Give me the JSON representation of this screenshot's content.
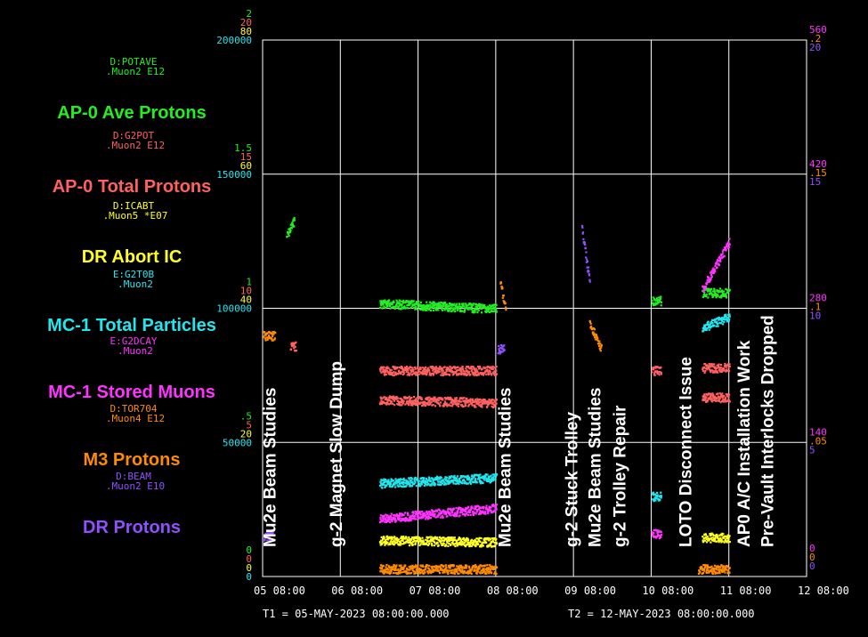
{
  "chart_data": {
    "type": "scatter",
    "grid": true,
    "x": {
      "ticks": [
        "05 08:00",
        "06 08:00",
        "07 08:00",
        "08 08:00",
        "09 08:00",
        "10 08:00",
        "11 08:00",
        "12 08:00"
      ],
      "t1_label": "T1 = 05-MAY-2023 08:00:00.000",
      "t2_label": "T2 = 12-MAY-2023 08:00:00.000",
      "range_days": [
        0,
        7
      ]
    },
    "left_axis_ticks": [
      {
        "color": "#22ee22",
        "values": [
          "2",
          "1.5",
          "1",
          ".5",
          "0"
        ]
      },
      {
        "color": "#ff6060",
        "values": [
          "20",
          "15",
          "10",
          "5",
          "0"
        ]
      },
      {
        "color": "#ffff22",
        "values": [
          "80",
          "60",
          "40",
          "20",
          "0"
        ]
      },
      {
        "color": "#22e6ee",
        "values": [
          "200000",
          "150000",
          "100000",
          "50000",
          "0"
        ]
      }
    ],
    "right_axis_ticks": [
      {
        "color": "#ff33ff",
        "values": [
          "560",
          "420",
          "280",
          "140",
          "0"
        ]
      },
      {
        "color": "#ff8c00",
        "values": [
          ".2",
          ".15",
          ".1",
          ".05",
          "0"
        ]
      },
      {
        "color": "#9050ff",
        "values": [
          "20",
          "15",
          "10",
          "5",
          "0"
        ]
      }
    ],
    "legend": [
      {
        "device": "D:POTAVE",
        "sub": ".Muon2 E12",
        "name": "AP-0 Ave Protons",
        "color": "#22ee22"
      },
      {
        "device": "D:G2POT",
        "sub": ".Muon2 E12",
        "name": "AP-0 Total Protons",
        "color": "#ff6060"
      },
      {
        "device": "D:ICABT",
        "sub": ".Muon5 *E07",
        "name": "DR Abort IC",
        "color": "#ffff22"
      },
      {
        "device": "E:G2T0B",
        "sub": ".Muon2",
        "name": "MC-1 Total Particles",
        "color": "#22e6ee"
      },
      {
        "device": "E:G2DCAY",
        "sub": ".Muon2",
        "name": "MC-1 Stored Muons",
        "color": "#ff33ff"
      },
      {
        "device": "D:TOR704",
        "sub": ".Muon4 E12",
        "name": "M3 Protons",
        "color": "#ff8c00"
      },
      {
        "device": "D:BEAM",
        "sub": ".Muon2 E10",
        "name": "DR Protons",
        "color": "#9050ff"
      }
    ],
    "annotations": [
      {
        "text": "Mu2e Beam Studies",
        "x_day": 0.1
      },
      {
        "text": "g-2 Magnet Slow Dump",
        "x_day": 0.95
      },
      {
        "text": "Mu2e Beam Studies",
        "x_day": 3.12
      },
      {
        "text": "g-2 Stuck Trolley",
        "x_day": 3.98
      },
      {
        "text": "Mu2e Beam Studies",
        "x_day": 4.28
      },
      {
        "text": "g-2 Trolley Repair",
        "x_day": 4.6
      },
      {
        "text": "LOTO Disconnect Issue",
        "x_day": 5.45
      },
      {
        "text": "AP0 A/C Installation Work",
        "x_day": 6.2
      },
      {
        "text": "Pre-Vault Interlocks Dropped",
        "x_day": 6.5
      }
    ],
    "series": [
      {
        "name": "AP-0 Ave Protons",
        "color": "#22ee22",
        "unit_max": 2,
        "segments": [
          [
            0.3,
            0.4,
            1.27,
            1.33
          ],
          [
            1.5,
            3.0,
            1.02,
            1.0
          ],
          [
            5.0,
            5.12,
            1.03,
            1.03
          ],
          [
            5.65,
            6.0,
            1.06,
            1.06
          ]
        ]
      },
      {
        "name": "AP-0 Total Protons",
        "color": "#ff6060",
        "unit_max": 20,
        "segments": [
          [
            1.5,
            3.0,
            7.7,
            7.7
          ],
          [
            1.5,
            3.0,
            6.6,
            6.5
          ],
          [
            5.0,
            5.12,
            7.7,
            7.7
          ],
          [
            5.65,
            6.0,
            7.8,
            7.8
          ],
          [
            5.65,
            6.0,
            6.7,
            6.7
          ],
          [
            0.35,
            0.42,
            8.6,
            8.6
          ]
        ]
      },
      {
        "name": "DR Abort IC",
        "color": "#ffff22",
        "unit_max": 80,
        "segments": [
          [
            1.5,
            3.0,
            5.5,
            5.2
          ],
          [
            5.65,
            6.0,
            5.9,
            5.9
          ]
        ]
      },
      {
        "name": "MC-1 Total Particles",
        "color": "#22e6ee",
        "unit_max": 200000,
        "segments": [
          [
            1.5,
            3.0,
            35000,
            37000
          ],
          [
            5.0,
            5.12,
            30000,
            30000
          ],
          [
            5.65,
            6.0,
            93000,
            97000
          ]
        ]
      },
      {
        "name": "MC-1 Stored Muons",
        "color": "#ff33ff",
        "unit_max": 560,
        "segments": [
          [
            1.5,
            3.0,
            61,
            72
          ],
          [
            5.0,
            5.12,
            45,
            45
          ],
          [
            5.65,
            6.0,
            300,
            350
          ]
        ]
      },
      {
        "name": "M3 Protons",
        "color": "#ff8c00",
        "unit_max": 0.2,
        "segments": [
          [
            0.0,
            0.15,
            0.09,
            0.09
          ],
          [
            1.5,
            3.0,
            0.003,
            0.003
          ],
          [
            3.05,
            3.12,
            0.11,
            0.1
          ],
          [
            4.2,
            4.35,
            0.095,
            0.085
          ],
          [
            5.6,
            6.0,
            0.003,
            0.003
          ]
        ]
      },
      {
        "name": "DR Protons",
        "color": "#9050ff",
        "unit_max": 20,
        "segments": [
          [
            0.0,
            0.12,
            1.5,
            1.5
          ],
          [
            4.1,
            4.2,
            13.0,
            11.0
          ],
          [
            3.02,
            3.1,
            8.5,
            8.5
          ]
        ]
      }
    ]
  }
}
